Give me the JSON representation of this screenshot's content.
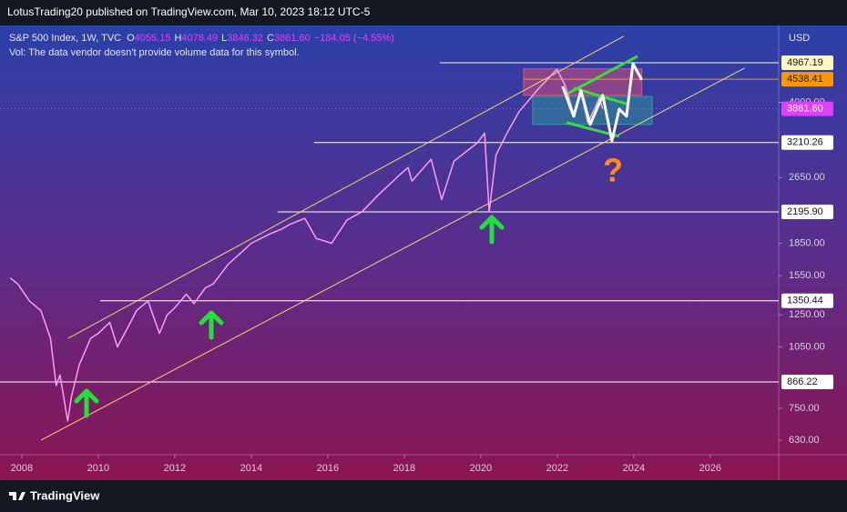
{
  "header": {
    "published": "LotusTrading20 published on TradingView.com, Mar 10, 2023 18:12 UTC-5"
  },
  "chart_data": {
    "type": "line",
    "symbol": "S&P 500 Index, 1W, TVC",
    "ohlc": [
      {
        "key": "O",
        "value": "4055.15"
      },
      {
        "key": "H",
        "value": "4078.49"
      },
      {
        "key": "L",
        "value": "3846.32"
      },
      {
        "key": "C",
        "value": "3861.60"
      }
    ],
    "change": "−184.05 (−4.55%)",
    "volume_note": "Vol: The data vendor doesn't provide volume data for this symbol.",
    "currency": "USD",
    "y_scale": "log",
    "color": "#ff9df5",
    "x": [
      2007.7,
      2007.9,
      2008.2,
      2008.5,
      2008.75,
      2008.9,
      2009.0,
      2009.2,
      2009.3,
      2009.5,
      2009.8,
      2010.0,
      2010.3,
      2010.5,
      2010.8,
      2011.0,
      2011.3,
      2011.6,
      2011.8,
      2012.0,
      2012.3,
      2012.5,
      2012.8,
      2013.0,
      2013.4,
      2013.8,
      2014.0,
      2014.5,
      2014.8,
      2015.0,
      2015.4,
      2015.7,
      2016.1,
      2016.5,
      2016.9,
      2017.3,
      2017.9,
      2018.1,
      2018.2,
      2018.7,
      2018.98,
      2019.3,
      2019.9,
      2020.1,
      2020.22,
      2020.4,
      2020.7,
      2021.0,
      2021.5,
      2021.99,
      2022.2,
      2022.45,
      2022.6,
      2022.8,
      2023.0,
      2023.1,
      2023.19
    ],
    "values": [
      1530,
      1480,
      1350,
      1280,
      1100,
      850,
      900,
      700,
      800,
      950,
      1100,
      1130,
      1200,
      1050,
      1180,
      1280,
      1350,
      1130,
      1250,
      1300,
      1400,
      1330,
      1450,
      1480,
      1650,
      1780,
      1850,
      1950,
      2000,
      2050,
      2120,
      1900,
      1850,
      2100,
      2200,
      2400,
      2700,
      2800,
      2600,
      2930,
      2350,
      2900,
      3200,
      3380,
      2200,
      3000,
      3400,
      3800,
      4300,
      4790,
      4400,
      3700,
      4300,
      3580,
      3900,
      4100,
      3861.6
    ],
    "xlim": [
      2007.43,
      2027.79
    ],
    "xticks": [
      2008,
      2010,
      2012,
      2014,
      2016,
      2018,
      2020,
      2022,
      2024,
      2026
    ],
    "ylim": [
      582,
      6090
    ],
    "yticks": [
      {
        "value": 630,
        "label": "630.00"
      },
      {
        "value": 750,
        "label": "750.00"
      },
      {
        "value": 1050,
        "label": "1050.00"
      },
      {
        "value": 1250,
        "label": "1250.00"
      },
      {
        "value": 1550,
        "label": "1550.00"
      },
      {
        "value": 1850,
        "label": "1850.00"
      },
      {
        "value": 2650,
        "label": "2650.00"
      },
      {
        "value": 4000,
        "label": "4000.00"
      }
    ],
    "levels": [
      {
        "value": 4967.19,
        "from": 2018.93,
        "color": "#fff8c0",
        "text_color": "#131722"
      },
      {
        "value": 4538.41,
        "from": 2021.12,
        "color": "#ff9800",
        "text_color": "#131722"
      },
      {
        "value": 3861.6,
        "label": "3861.60",
        "color": "#e040fb",
        "text_color": "#ffffff",
        "dotted": true
      },
      {
        "value": 3210.26,
        "from": 2015.64,
        "color": "#ffffff",
        "text_color": "#131722"
      },
      {
        "value": 2195.9,
        "label": "2195.90",
        "from": 2014.69,
        "color": "#ffffff",
        "text_color": "#131722"
      },
      {
        "value": 1350.44,
        "from": 2010.05,
        "color": "#ffffff",
        "text_color": "#131722"
      },
      {
        "value": 866.22,
        "color": "#ffffff",
        "text_color": "#131722"
      }
    ],
    "trendlines": [
      {
        "x": [
          2009.21,
          2023.74
        ],
        "values": [
          1100,
          5744
        ],
        "color": "#f5d76e"
      },
      {
        "x": [
          2008.5,
          2026.9
        ],
        "values": [
          630,
          4826
        ],
        "color": "#f5d76e"
      },
      {
        "x": [
          2022.19,
          2024.1
        ],
        "values": [
          4157,
          5147
        ],
        "color": "#3ddc3d"
      },
      {
        "x": [
          2022.43,
          2023.86
        ],
        "values": [
          4326,
          3955
        ],
        "color": "#3ddc3d"
      },
      {
        "x": [
          2022.24,
          2023.62
        ],
        "values": [
          3580,
          3321
        ],
        "color": "#3ddc3d"
      }
    ],
    "zones": [
      {
        "x0": 2021.12,
        "x1": 2024.21,
        "y0": 4157,
        "y1": 4803,
        "color": "#f0506e"
      },
      {
        "x0": 2021.36,
        "x1": 2024.48,
        "y0": 3545,
        "y1": 4130,
        "color": "#26a69a"
      }
    ],
    "projection": {
      "x": [
        2022.14,
        2022.43,
        2022.62,
        2022.86,
        2023.19,
        2023.43,
        2023.62,
        2023.81,
        2023.98,
        2024.21
      ],
      "values": [
        4366,
        3707,
        4260,
        3543,
        4157,
        3239,
        3856,
        3707,
        4946,
        4523
      ],
      "color": "#ffffff"
    },
    "annotation": "?"
  },
  "footer": {
    "brand": "TradingView"
  }
}
